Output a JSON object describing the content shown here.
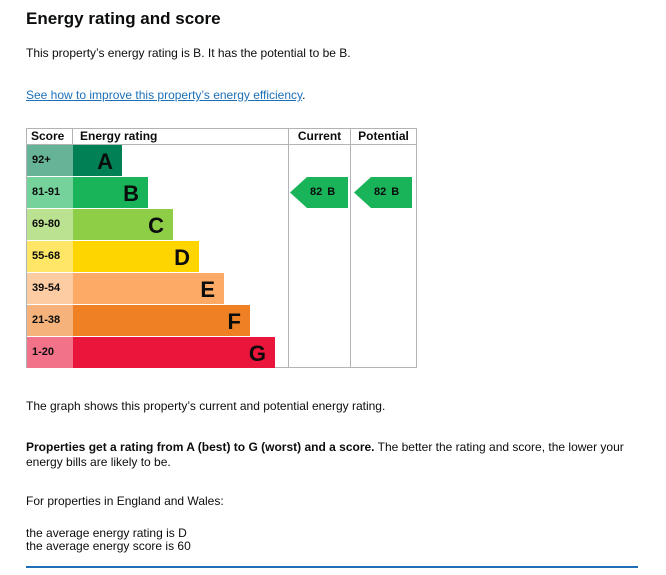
{
  "heading": "Energy rating and score",
  "summary": "This property’s energy rating is B. It has the potential to be B.",
  "improve_link": "See how to improve this property’s energy efficiency",
  "improve_link_suffix": ".",
  "graph": {
    "headers": {
      "score": "Score",
      "rating": "Energy rating",
      "current": "Current",
      "potential": "Potential"
    },
    "bands": [
      {
        "score": "92+",
        "letter": "A",
        "color": "#008054",
        "score_bg": "#66b398"
      },
      {
        "score": "81-91",
        "letter": "B",
        "color": "#19b459",
        "score_bg": "#75d29b"
      },
      {
        "score": "69-80",
        "letter": "C",
        "color": "#8dce46",
        "score_bg": "#bbe290"
      },
      {
        "score": "55-68",
        "letter": "D",
        "color": "#ffd500",
        "score_bg": "#ffe666"
      },
      {
        "score": "39-54",
        "letter": "E",
        "color": "#fcaa65",
        "score_bg": "#fdcca3"
      },
      {
        "score": "21-38",
        "letter": "F",
        "color": "#ef8023",
        "score_bg": "#f5b37b"
      },
      {
        "score": "1-20",
        "letter": "G",
        "color": "#e9153b",
        "score_bg": "#f27389"
      }
    ],
    "current": {
      "score": "82",
      "letter": "B",
      "color": "#19b459"
    },
    "potential": {
      "score": "82",
      "letter": "B",
      "color": "#19b459"
    }
  },
  "graph_caption": "The graph shows this property’s current and potential energy rating.",
  "rating_info_bold": "Properties get a rating from A (best) to G (worst) and a score.",
  "rating_info_rest": " The better the rating and score, the lower your energy bills are likely to be.",
  "england_wales": "For properties in England and Wales:",
  "average_rating": "the average energy rating is D",
  "average_score": "the average energy score is 60"
}
